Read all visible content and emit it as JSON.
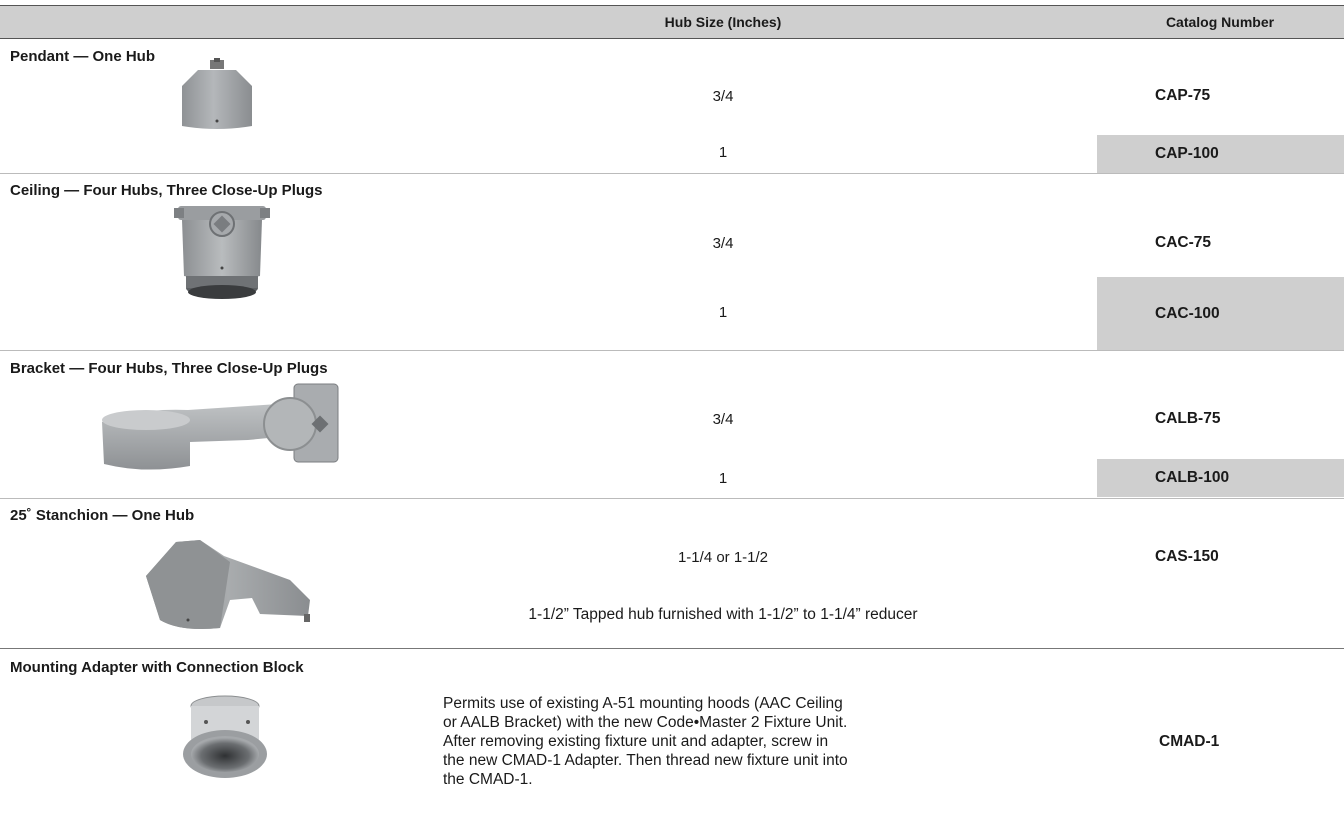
{
  "header": {
    "hub_size": "Hub Size (Inches)",
    "catalog": "Catalog Number"
  },
  "groups": [
    {
      "title": "Pendant — One Hub",
      "rows": [
        {
          "hub": "3/4",
          "catalog": "CAP-75"
        },
        {
          "hub": "1",
          "catalog": "CAP-100"
        }
      ]
    },
    {
      "title": "Ceiling — Four Hubs, Three Close-Up Plugs",
      "rows": [
        {
          "hub": "3/4",
          "catalog": "CAC-75"
        },
        {
          "hub": "1",
          "catalog": "CAC-100"
        }
      ]
    },
    {
      "title": "Bracket — Four Hubs, Three Close-Up Plugs",
      "rows": [
        {
          "hub": "3/4",
          "catalog": "CALB-75"
        },
        {
          "hub": "1",
          "catalog": "CALB-100"
        }
      ]
    },
    {
      "title": "25˚ Stanchion — One Hub",
      "rows": [
        {
          "hub": "1-1/4 or 1-1/2",
          "catalog": "CAS-150"
        }
      ],
      "note": "1-1/2” Tapped hub furnished with 1-1/2” to 1-1/4” reducer"
    },
    {
      "title": "Mounting Adapter with Connection Block",
      "description": [
        "Permits use of existing A-51 mounting hoods (AAC Ceiling",
        "or AALB Bracket) with the new Code•Master 2 Fixture Unit.",
        "After removing existing fixture unit and adapter, screw in",
        "the new CMAD-1 Adapter. Then thread new fixture unit into",
        "the CMAD-1."
      ],
      "catalog": "CMAD-1"
    }
  ]
}
